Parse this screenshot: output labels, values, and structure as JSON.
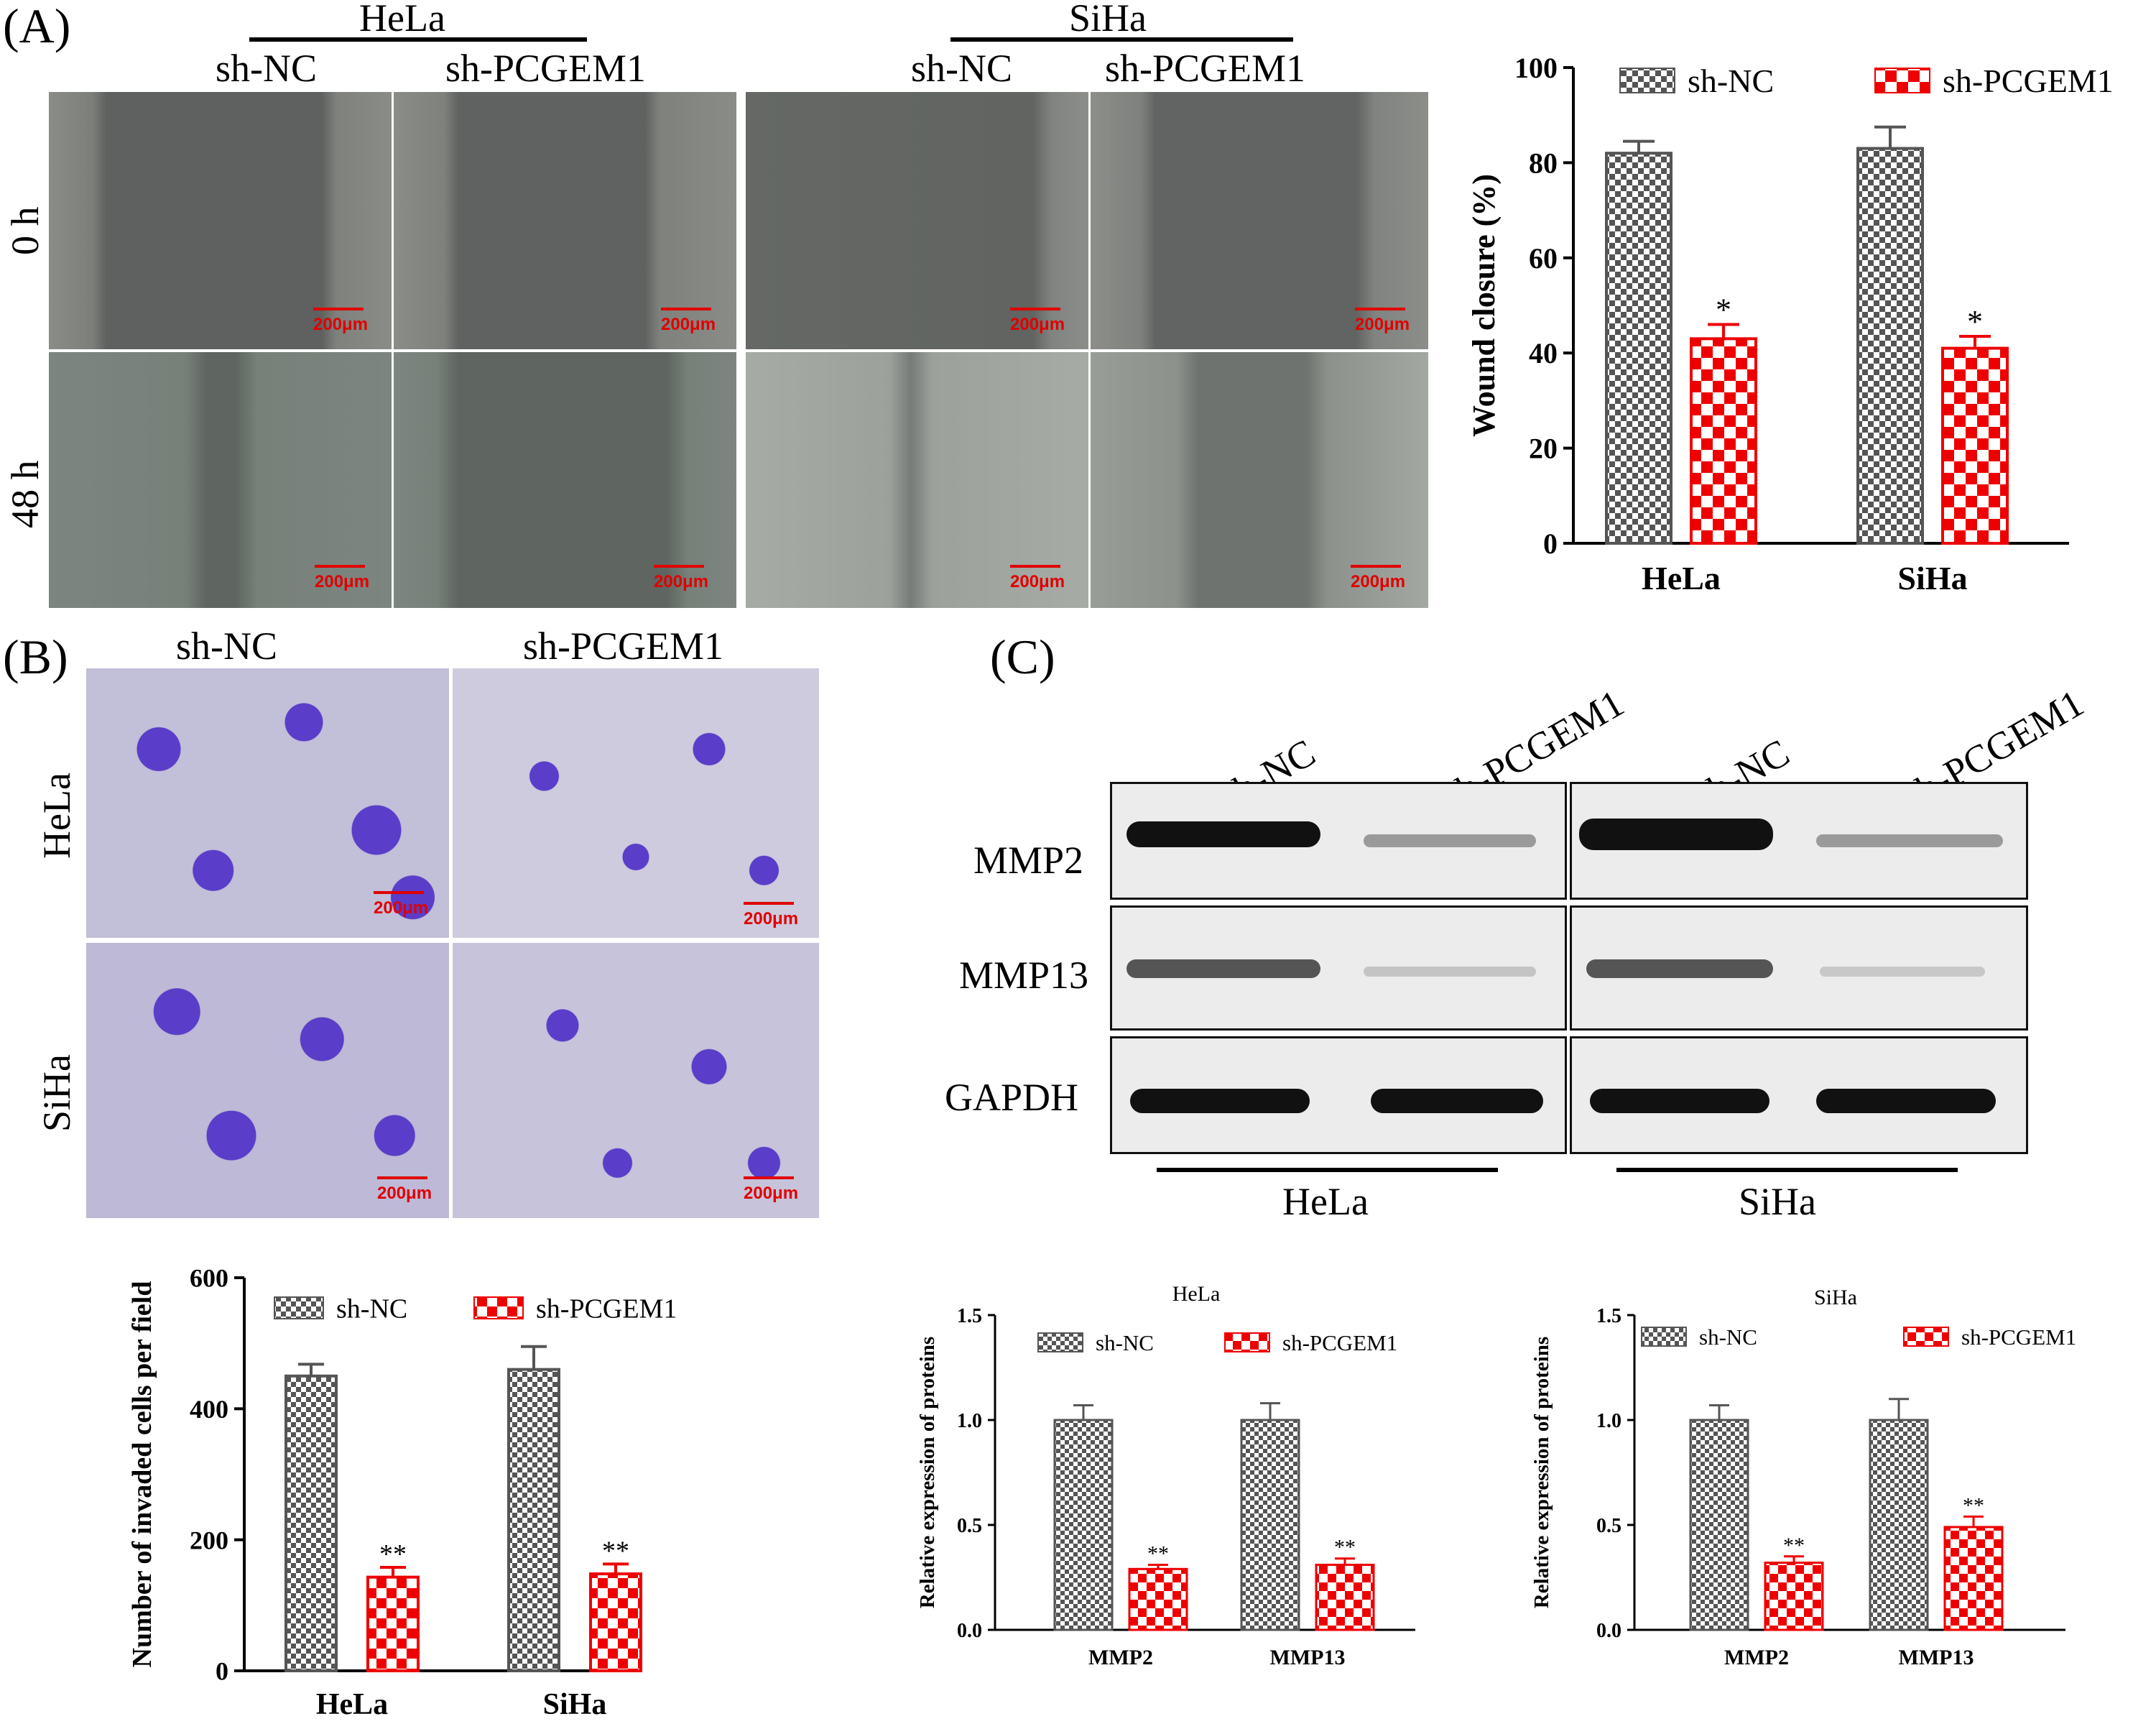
{
  "panels": {
    "A": "(A)",
    "B": "(B)",
    "C": "(C)"
  },
  "panelA": {
    "cell_lines": [
      "HeLa",
      "SiHa"
    ],
    "groups": [
      "sh-NC",
      "sh-PCGEM1"
    ],
    "times": [
      "0 h",
      "48 h"
    ],
    "scale_bar": "200μm"
  },
  "panelB": {
    "groups": [
      "sh-NC",
      "sh-PCGEM1"
    ],
    "cell_lines": [
      "HeLa",
      "SiHa"
    ],
    "scale_bar": "200μm"
  },
  "panelC": {
    "lanes": [
      "sh-NC",
      "sh-PCGEM1",
      "sh-NC",
      "sh-PCGEM1"
    ],
    "proteins": [
      "MMP2",
      "MMP13",
      "GAPDH"
    ],
    "cell_lines": [
      "HeLa",
      "SiHa"
    ]
  },
  "colors": {
    "sh_nc": "#555555",
    "sh_pcgem1": "#ee0000",
    "scale_bar": "#e00000",
    "crystal_violet": "#4a2fc0"
  },
  "chart_data": [
    {
      "id": "wound",
      "type": "bar",
      "title": "",
      "xlabel": "",
      "ylabel": "Wound closure (%)",
      "categories": [
        "HeLa",
        "SiHa"
      ],
      "ylim": [
        0,
        100
      ],
      "yticks": [
        "0",
        "20",
        "40",
        "60",
        "80",
        "100"
      ],
      "series": [
        {
          "name": "sh-NC",
          "values": [
            82,
            83
          ],
          "errors": [
            2.5,
            4.5
          ],
          "marks": [
            "",
            ""
          ]
        },
        {
          "name": "sh-PCGEM1",
          "values": [
            43,
            41
          ],
          "errors": [
            3,
            2.5
          ],
          "marks": [
            "*",
            "*"
          ]
        }
      ],
      "legend": "top"
    },
    {
      "id": "invasion",
      "type": "bar",
      "title": "",
      "xlabel": "",
      "ylabel": "Number of invaded cells per field",
      "categories": [
        "HeLa",
        "SiHa"
      ],
      "ylim": [
        0,
        600
      ],
      "yticks": [
        "0",
        "200",
        "400",
        "600"
      ],
      "series": [
        {
          "name": "sh-NC",
          "values": [
            450,
            460
          ],
          "errors": [
            18,
            35
          ],
          "marks": [
            "",
            ""
          ]
        },
        {
          "name": "sh-PCGEM1",
          "values": [
            143,
            148
          ],
          "errors": [
            15,
            15
          ],
          "marks": [
            "**",
            "**"
          ]
        }
      ],
      "legend": "top"
    },
    {
      "id": "wb_hela",
      "type": "bar",
      "title": "HeLa",
      "xlabel": "",
      "ylabel": "Relative expression of proteins",
      "categories": [
        "MMP2",
        "MMP13"
      ],
      "ylim": [
        0,
        1.5
      ],
      "yticks": [
        "0.0",
        "0.5",
        "1.0",
        "1.5"
      ],
      "series": [
        {
          "name": "sh-NC",
          "values": [
            1.0,
            1.0
          ],
          "errors": [
            0.07,
            0.08
          ],
          "marks": [
            "",
            ""
          ]
        },
        {
          "name": "sh-PCGEM1",
          "values": [
            0.29,
            0.31
          ],
          "errors": [
            0.02,
            0.03
          ],
          "marks": [
            "**",
            "**"
          ]
        }
      ],
      "legend": "top"
    },
    {
      "id": "wb_siha",
      "type": "bar",
      "title": "SiHa",
      "xlabel": "",
      "ylabel": "Relative expression of proteins",
      "categories": [
        "MMP2",
        "MMP13"
      ],
      "ylim": [
        0,
        1.5
      ],
      "yticks": [
        "0.0",
        "0.5",
        "1.0",
        "1.5"
      ],
      "series": [
        {
          "name": "sh-NC",
          "values": [
            1.0,
            1.0
          ],
          "errors": [
            0.07,
            0.1
          ],
          "marks": [
            "",
            ""
          ]
        },
        {
          "name": "sh-PCGEM1",
          "values": [
            0.32,
            0.49
          ],
          "errors": [
            0.03,
            0.05
          ],
          "marks": [
            "**",
            "**"
          ]
        }
      ],
      "legend": "top"
    }
  ]
}
